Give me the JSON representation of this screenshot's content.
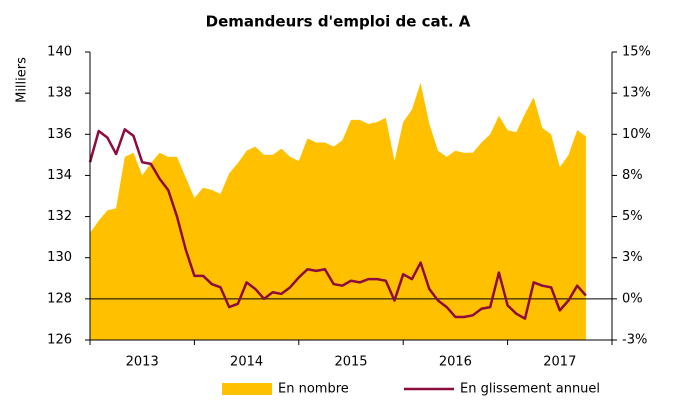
{
  "chart_data": {
    "type": "area_line",
    "title": "Demandeurs d'emploi de cat. A",
    "y_label": "Milliers",
    "categories": [
      null,
      null,
      null,
      null,
      null,
      null,
      "2013",
      null,
      null,
      null,
      null,
      null,
      null,
      null,
      null,
      null,
      null,
      null,
      "2014",
      null,
      null,
      null,
      null,
      null,
      null,
      null,
      null,
      null,
      null,
      null,
      "2015",
      null,
      null,
      null,
      null,
      null,
      null,
      null,
      null,
      null,
      null,
      null,
      "2016",
      null,
      null,
      null,
      null,
      null,
      null,
      null,
      null,
      null,
      null,
      null,
      "2017",
      null,
      null,
      null
    ],
    "series": [
      {
        "name": "En nombre",
        "color": "#ffc000",
        "kind": "area",
        "values": [
          131.2,
          131.8,
          132.3,
          132.4,
          134.9,
          135.1,
          134.0,
          134.6,
          135.1,
          134.9,
          134.9,
          133.9,
          132.9,
          133.4,
          133.3,
          133.1,
          134.1,
          134.6,
          135.2,
          135.4,
          135.0,
          135.0,
          135.3,
          134.9,
          134.7,
          135.8,
          135.6,
          135.6,
          135.4,
          135.7,
          136.7,
          136.7,
          136.5,
          136.6,
          136.8,
          134.7,
          136.6,
          137.2,
          138.5,
          136.5,
          135.2,
          134.9,
          135.2,
          135.1,
          135.1,
          135.6,
          136.0,
          136.9,
          136.2,
          136.1,
          137.0,
          137.8,
          136.3,
          136.0,
          134.4,
          135.0,
          136.2,
          135.9
        ]
      },
      {
        "name": "En glissement annuel",
        "color": "#8e0b3e",
        "kind": "line",
        "axis": "y2",
        "values": [
          8.3,
          10.2,
          9.8,
          8.8,
          10.3,
          9.9,
          8.3,
          8.2,
          7.3,
          6.6,
          5.0,
          3.0,
          1.4,
          1.4,
          0.9,
          0.7,
          -0.5,
          -0.3,
          1.0,
          0.6,
          0.0,
          0.4,
          0.3,
          0.7,
          1.3,
          1.8,
          1.7,
          1.8,
          0.9,
          0.8,
          1.1,
          1.0,
          1.2,
          1.2,
          1.1,
          -0.1,
          1.5,
          1.2,
          2.2,
          0.6,
          -0.1,
          -0.5,
          -1.1,
          -1.1,
          -1.0,
          -0.6,
          -0.5,
          1.6,
          -0.4,
          -0.9,
          -1.2,
          1.0,
          0.8,
          0.7,
          -0.7,
          -0.1,
          0.8,
          0.2
        ]
      }
    ],
    "ylim": [
      126,
      140
    ],
    "yticks": [
      126,
      128,
      130,
      132,
      134,
      136,
      138,
      140
    ],
    "y2lim": [
      -2.5,
      15
    ],
    "y2ticks": [
      {
        "value": -2.5,
        "label": "-3%"
      },
      {
        "value": 0,
        "label": "0%"
      },
      {
        "value": 2.5,
        "label": "3%"
      },
      {
        "value": 5,
        "label": "5%"
      },
      {
        "value": 7.5,
        "label": "8%"
      },
      {
        "value": 10,
        "label": "10%"
      },
      {
        "value": 12.5,
        "label": "13%"
      },
      {
        "value": 15,
        "label": "15%"
      }
    ],
    "legend": "bottom"
  }
}
